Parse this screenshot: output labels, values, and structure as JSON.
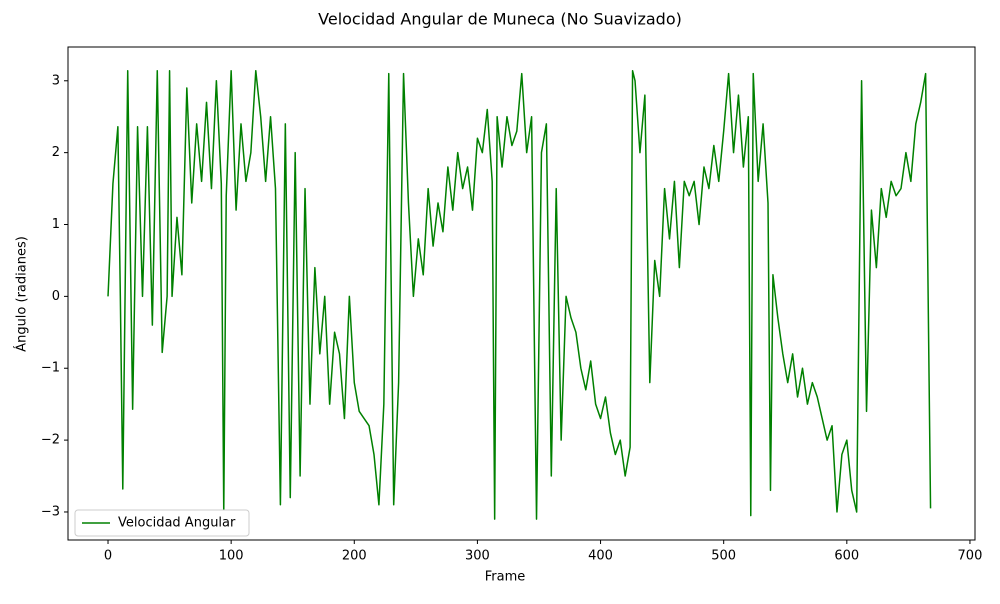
{
  "chart_data": {
    "type": "line",
    "title": "Velocidad Angular de Muneca (No Suavizado)",
    "x_label": "Frame",
    "y_label": "Ángulo (radianes)",
    "x": [
      0,
      4,
      8,
      10,
      12,
      16,
      20,
      24,
      28,
      32,
      36,
      40,
      44,
      48,
      50,
      52,
      56,
      60,
      64,
      68,
      72,
      76,
      80,
      84,
      88,
      92,
      94,
      96,
      100,
      104,
      108,
      112,
      116,
      120,
      124,
      128,
      132,
      136,
      140,
      144,
      148,
      152,
      156,
      160,
      164,
      168,
      172,
      176,
      180,
      184,
      188,
      192,
      196,
      200,
      204,
      208,
      212,
      216,
      220,
      224,
      228,
      232,
      236,
      240,
      244,
      248,
      252,
      256,
      260,
      264,
      268,
      272,
      276,
      280,
      284,
      288,
      292,
      296,
      300,
      304,
      308,
      312,
      314,
      316,
      320,
      324,
      328,
      332,
      336,
      340,
      344,
      348,
      352,
      356,
      360,
      364,
      368,
      372,
      376,
      380,
      384,
      388,
      392,
      396,
      400,
      404,
      408,
      412,
      416,
      420,
      424,
      426,
      428,
      432,
      436,
      440,
      444,
      448,
      452,
      456,
      460,
      464,
      468,
      472,
      476,
      480,
      484,
      488,
      492,
      496,
      500,
      504,
      508,
      512,
      516,
      520,
      522,
      524,
      528,
      532,
      536,
      538,
      540,
      544,
      548,
      552,
      556,
      560,
      564,
      568,
      572,
      576,
      580,
      584,
      588,
      592,
      596,
      600,
      604,
      608,
      612,
      616,
      620,
      624,
      628,
      632,
      636,
      640,
      644,
      648,
      652,
      656,
      660,
      664,
      668
    ],
    "series": [
      {
        "name": "Velocidad Angular",
        "color": "#008000",
        "values": [
          0,
          1.57,
          2.36,
          0,
          -2.68,
          3.14,
          -1.57,
          2.36,
          0,
          2.36,
          -0.4,
          3.14,
          -0.78,
          0,
          3.14,
          0,
          1.1,
          0.3,
          2.9,
          1.3,
          2.4,
          1.6,
          2.7,
          1.5,
          3.0,
          1.57,
          -3.0,
          1.4,
          3.14,
          1.2,
          2.4,
          1.6,
          2.0,
          3.14,
          2.5,
          1.6,
          2.5,
          1.5,
          -2.9,
          2.4,
          -2.8,
          2.0,
          -2.5,
          1.5,
          -1.5,
          0.4,
          -0.8,
          0,
          -1.5,
          -0.5,
          -0.8,
          -1.7,
          0,
          -1.2,
          -1.6,
          -1.7,
          -1.8,
          -2.2,
          -2.9,
          -1.5,
          3.1,
          -2.9,
          -1.2,
          3.1,
          1.3,
          0,
          0.8,
          0.3,
          1.5,
          0.7,
          1.3,
          0.9,
          1.8,
          1.2,
          2.0,
          1.5,
          1.8,
          1.2,
          2.2,
          2.0,
          2.6,
          1.6,
          -3.1,
          2.5,
          1.8,
          2.5,
          2.1,
          2.3,
          3.1,
          2.0,
          2.5,
          -3.1,
          2.0,
          2.4,
          -2.5,
          1.5,
          -2.0,
          0,
          -0.3,
          -0.5,
          -1.0,
          -1.3,
          -0.9,
          -1.5,
          -1.7,
          -1.4,
          -1.9,
          -2.2,
          -2.0,
          -2.5,
          -2.1,
          3.14,
          3.0,
          2.0,
          2.8,
          -1.2,
          0.5,
          0,
          1.5,
          0.8,
          1.6,
          0.4,
          1.6,
          1.4,
          1.6,
          1.0,
          1.8,
          1.5,
          2.1,
          1.6,
          2.3,
          3.1,
          2.0,
          2.8,
          1.8,
          2.5,
          -3.05,
          3.1,
          1.6,
          2.4,
          1.3,
          -2.7,
          0.3,
          -0.3,
          -0.8,
          -1.2,
          -0.8,
          -1.4,
          -1.0,
          -1.5,
          -1.2,
          -1.4,
          -1.7,
          -2.0,
          -1.8,
          -3.0,
          -2.2,
          -2.0,
          -2.7,
          -3.0,
          3.0,
          -1.6,
          1.2,
          0.4,
          1.5,
          1.1,
          1.6,
          1.4,
          1.5,
          2.0,
          1.6,
          2.4,
          2.7,
          3.1,
          -2.95
        ]
      }
    ],
    "xlim": [
      -32.5,
      704.1
    ],
    "ylim": [
      -3.39,
      3.47
    ],
    "xticks": [
      0,
      100,
      200,
      300,
      400,
      500,
      600,
      700
    ],
    "yticks": [
      {
        "value": -3,
        "label": "−3"
      },
      {
        "value": -2,
        "label": "−2"
      },
      {
        "value": -1,
        "label": "−1"
      },
      0,
      1,
      2,
      3
    ],
    "grid": false,
    "legend": "lower left"
  }
}
